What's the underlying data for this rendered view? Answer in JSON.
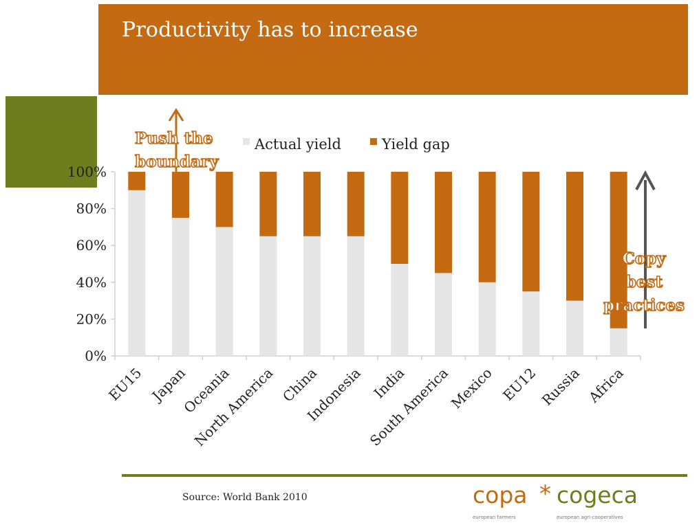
{
  "slide": {
    "title": "Productivity has to increase",
    "source": "Source: World Bank 2010"
  },
  "colors": {
    "orange": "#c46a12",
    "olive": "#6e7d1d",
    "actual_yield": "#e6e6e6",
    "yield_gap": "#c46a12",
    "arrow_copy": "#555555"
  },
  "annotations": {
    "push_line1": "Push the",
    "push_line2": "boundary",
    "copy_line1": "Copy",
    "copy_line2": "best",
    "copy_line3": "practices"
  },
  "logo": {
    "left_word": "copa",
    "star": "*",
    "right_word": "cogeca",
    "left_sub": "european farmers",
    "right_sub": "european agri-cooperatives"
  },
  "chart_data": {
    "type": "bar",
    "stacked": true,
    "title": "",
    "xlabel": "",
    "ylabel": "",
    "ylim": [
      0,
      100
    ],
    "yticks": [
      "0%",
      "20%",
      "40%",
      "60%",
      "80%",
      "100%"
    ],
    "legend_position": "top",
    "categories": [
      "EU15",
      "Japan",
      "Oceania",
      "North America",
      "China",
      "Indonesia",
      "India",
      "South America",
      "Mexico",
      "EU12",
      "Russia",
      "Africa"
    ],
    "series": [
      {
        "name": "Actual yield",
        "values": [
          90,
          75,
          70,
          65,
          65,
          65,
          50,
          45,
          40,
          35,
          30,
          15
        ]
      },
      {
        "name": "Yield gap",
        "values": [
          10,
          25,
          30,
          35,
          35,
          35,
          50,
          55,
          60,
          65,
          70,
          85
        ]
      }
    ]
  }
}
